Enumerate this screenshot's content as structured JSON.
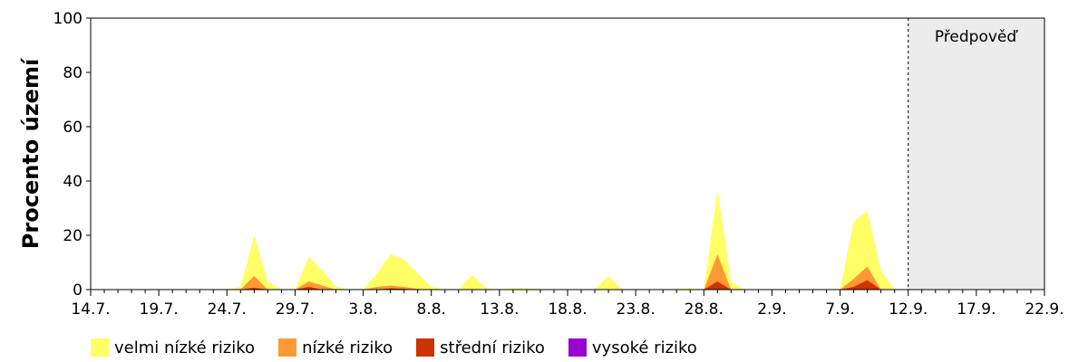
{
  "chart_data": {
    "type": "area",
    "ylabel": "Procento území",
    "xlabel": "",
    "ylim": [
      0,
      100
    ],
    "y_ticks": [
      "0",
      "20",
      "40",
      "60",
      "80",
      "100"
    ],
    "x_tick_labels": [
      "14.7.",
      "19.7.",
      "24.7.",
      "29.7.",
      "3.8.",
      "8.8.",
      "13.8.",
      "18.8.",
      "23.8.",
      "28.8.",
      "2.9.",
      "7.9.",
      "12.9.",
      "17.9.",
      "22.9."
    ],
    "x": [
      "14.7.",
      "15.7.",
      "16.7.",
      "17.7.",
      "18.7.",
      "19.7.",
      "20.7.",
      "21.7.",
      "22.7.",
      "23.7.",
      "24.7.",
      "25.7.",
      "26.7.",
      "27.7.",
      "28.7.",
      "29.7.",
      "30.7.",
      "31.7.",
      "1.8.",
      "2.8.",
      "3.8.",
      "4.8.",
      "5.8.",
      "6.8.",
      "7.8.",
      "8.8.",
      "9.8.",
      "10.8.",
      "11.8.",
      "12.8.",
      "13.8.",
      "14.8.",
      "15.8.",
      "16.8.",
      "17.8.",
      "18.8.",
      "19.8.",
      "20.8.",
      "21.8.",
      "22.8.",
      "23.8.",
      "24.8.",
      "25.8.",
      "26.8.",
      "27.8.",
      "28.8.",
      "29.8.",
      "30.8.",
      "31.8.",
      "1.9.",
      "2.9.",
      "3.9.",
      "4.9.",
      "5.9.",
      "6.9.",
      "7.9.",
      "8.9.",
      "9.9.",
      "10.9.",
      "11.9.",
      "12.9."
    ],
    "series": [
      {
        "name": "velmi nízké riziko",
        "color": "#ffff66",
        "values": [
          0,
          0,
          0,
          0,
          0,
          0,
          0,
          0,
          0,
          0,
          0,
          1,
          20,
          3,
          0,
          0,
          12,
          7,
          1,
          0,
          0,
          6,
          13,
          11,
          6,
          1,
          0,
          0,
          5.5,
          0.5,
          0,
          0.5,
          0.5,
          0.3,
          0,
          0,
          0,
          0,
          5,
          0,
          0,
          0,
          0,
          0.3,
          0.5,
          0,
          37,
          3,
          0,
          0,
          0,
          0,
          0,
          0,
          0,
          0,
          25,
          29,
          7,
          0,
          0
        ]
      },
      {
        "name": "nízké riziko",
        "color": "#ff9933",
        "values": [
          0,
          0,
          0,
          0,
          0,
          0,
          0,
          0,
          0,
          0,
          0,
          0,
          5,
          0,
          0,
          0,
          3,
          1.5,
          0,
          0,
          0,
          1,
          1.5,
          1,
          0.3,
          0,
          0,
          0,
          0,
          0,
          0,
          0,
          0,
          0,
          0,
          0,
          0,
          0,
          0,
          0,
          0,
          0,
          0,
          0,
          0,
          0,
          13,
          0,
          0,
          0,
          0,
          0,
          0,
          0,
          0,
          0,
          4,
          8.5,
          0,
          0,
          0
        ]
      },
      {
        "name": "střední riziko",
        "color": "#cc3300",
        "values": [
          0,
          0,
          0,
          0,
          0,
          0,
          0,
          0,
          0,
          0,
          0,
          0,
          0.7,
          0,
          0,
          0,
          1,
          0,
          0,
          0,
          0,
          0,
          0.5,
          0.3,
          0,
          0,
          0,
          0,
          0,
          0,
          0,
          0,
          0,
          0,
          0,
          0,
          0,
          0,
          0,
          0,
          0,
          0,
          0,
          0,
          0,
          0,
          3,
          0,
          0,
          0,
          0,
          0,
          0,
          0,
          0,
          0,
          1,
          3.5,
          0,
          0,
          0
        ]
      },
      {
        "name": "vysoké riziko",
        "color": "#9900cc",
        "values": [
          0,
          0,
          0,
          0,
          0,
          0,
          0,
          0,
          0,
          0,
          0,
          0,
          0,
          0,
          0,
          0,
          0,
          0,
          0,
          0,
          0,
          0,
          0,
          0,
          0,
          0,
          0,
          0,
          0,
          0,
          0,
          0,
          0,
          0,
          0,
          0,
          0,
          0,
          0,
          0,
          0,
          0,
          0,
          0,
          0,
          0,
          0,
          0,
          0,
          0,
          0,
          0,
          0,
          0,
          0,
          0,
          0,
          0,
          0,
          0,
          0
        ]
      }
    ],
    "forecast_label": "Předpověď",
    "forecast_start": "12.9.",
    "forecast_end": "22.9.",
    "forecast_color": "#ececec",
    "grid": false,
    "legend": "bottom"
  }
}
